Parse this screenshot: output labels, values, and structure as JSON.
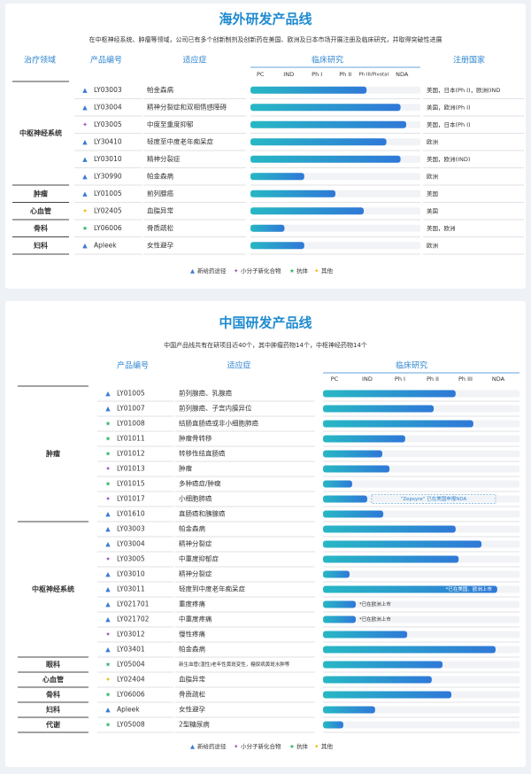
{
  "sections": [
    {
      "title": "海外研发产品线",
      "subtitle": "在中枢神经系统、肿瘤等领域，公司已有多个创新制剂及创新药在美国、欧洲及日本市场开展注册及临床研究，并取得突破性进展",
      "headers": [
        "治疗领域",
        "产品编号",
        "适应症",
        "临床研究",
        "注册国家"
      ],
      "stages": [
        "PC",
        "IND",
        "Ph I",
        "Ph II",
        "Ph III/Pivotal",
        "NDA"
      ],
      "areas": [
        {
          "name": "中枢神经系统",
          "products": [
            {
              "code": "LY03003",
              "indication": "帕金森病",
              "kind": "新给药途径",
              "progress": 4.1,
              "country": "美国，日本(Ph I)，欧洲(IND"
            },
            {
              "code": "LY03004",
              "indication": "精神分裂症和双相情感障碍",
              "kind": "新给药途径",
              "progress": 5.3,
              "country": "美国，欧洲(Ph I)"
            },
            {
              "code": "LY03005",
              "indication": "中度至重度抑郁",
              "kind": "小分子新化合物",
              "progress": 5.5,
              "country": "美国，日本(Ph I)"
            },
            {
              "code": "LY30410",
              "indication": "轻度至中度老年痴呆症",
              "kind": "新给药途径",
              "progress": 4.8,
              "country": "欧洲"
            },
            {
              "code": "LY03010",
              "indication": "精神分裂症",
              "kind": "新给药途径",
              "progress": 5.3,
              "country": "美国，欧洲(IND)"
            },
            {
              "code": "LY30990",
              "indication": "帕金森病",
              "kind": "新给药途径",
              "progress": 1.9,
              "country": "欧洲"
            }
          ]
        },
        {
          "name": "肿瘤",
          "products": [
            {
              "code": "LY01005",
              "indication": "前列腺癌",
              "kind": "新给药途径",
              "progress": 3.0,
              "country": "美国"
            }
          ]
        },
        {
          "name": "心血管",
          "products": [
            {
              "code": "LY02405",
              "indication": "血脂异常",
              "kind": "其他",
              "progress": 4.0,
              "country": "美国"
            }
          ]
        },
        {
          "name": "骨科",
          "products": [
            {
              "code": "LY06006",
              "indication": "骨质疏松",
              "kind": "抗体",
              "progress": 1.2,
              "country": "美国，欧洲"
            }
          ]
        },
        {
          "name": "妇科",
          "products": [
            {
              "code": "Apleek",
              "indication": "女性避孕",
              "kind": "新给药途径",
              "progress": 1.9,
              "country": "欧洲"
            }
          ]
        }
      ],
      "legend": [
        "新给药途径",
        "小分子新化合物",
        "抗体",
        "其他"
      ]
    },
    {
      "title": "中国研发产品线",
      "subtitle": "中国产品线共有在研项目近40个，其中肿瘤药物14个，中枢神经药物14个",
      "headers": [
        "产品编号",
        "适应症",
        "临床研究"
      ],
      "stages": [
        "PC",
        "IND",
        "Ph I",
        "Ph II",
        "Ph III",
        "NDA"
      ],
      "areas": [
        {
          "name": "肿瘤",
          "products": [
            {
              "code": "LY01005",
              "indication": "前列腺癌、乳腺癌",
              "kind": "新给药途径",
              "progress": 4.05
            },
            {
              "code": "LY01007",
              "indication": "前列腺癌、子宫内膜异位",
              "kind": "新给药途径",
              "progress": 3.38
            },
            {
              "code": "LY01008",
              "indication": "结肠直肠癌或非小细胞肺癌",
              "kind": "抗体",
              "progress": 4.59
            },
            {
              "code": "LY01011",
              "indication": "肿瘤骨转移",
              "kind": "抗体",
              "progress": 2.51
            },
            {
              "code": "LY01012",
              "indication": "转移性结直肠癌",
              "kind": "抗体",
              "progress": 1.81
            },
            {
              "code": "LY01013",
              "indication": "肿瘤",
              "kind": "小分子新化合物",
              "progress": 2.03
            },
            {
              "code": "LY01015",
              "indication": "多种癌症/肿瘤",
              "kind": "抗体",
              "progress": 0.89
            },
            {
              "code": "LY01017",
              "indication": "小细胞肺癌",
              "kind": "小分子新化合物",
              "progress": 1.35,
              "note": "“Zepsyre” 已在美国申报NDA"
            },
            {
              "code": "LY01610",
              "indication": "直肠癌和胰腺癌",
              "kind": "新给药途径",
              "progress": 1.84
            }
          ]
        },
        {
          "name": "中枢神经系统",
          "products": [
            {
              "code": "LY03003",
              "indication": "帕金森病",
              "kind": "新给药途径",
              "progress": 4.05
            },
            {
              "code": "LY03004",
              "indication": "精神分裂症",
              "kind": "新给药途径",
              "progress": 4.84
            },
            {
              "code": "LY03005",
              "indication": "中重度抑郁症",
              "kind": "小分子新化合物",
              "progress": 4.14
            },
            {
              "code": "LY03010",
              "indication": "精神分裂症",
              "kind": "新给药途径",
              "progress": 0.81
            },
            {
              "code": "LY03011",
              "indication": "轻度到中度老年痴呆症",
              "kind": "新给药途径",
              "progress": 5.32,
              "note": "*已在美国、欧洲上市"
            },
            {
              "code": "LY021701",
              "indication": "重度疼痛",
              "kind": "新给药途径",
              "progress": 1.0,
              "note": "*已在欧洲上市"
            },
            {
              "code": "LY021702",
              "indication": "中重度疼痛",
              "kind": "新给药途径",
              "progress": 1.0,
              "note": "*已在欧洲上市"
            },
            {
              "code": "LY03012",
              "indication": "慢性疼痛",
              "kind": "小分子新化合物",
              "progress": 2.57
            },
            {
              "code": "LY03401",
              "indication": "帕金森病",
              "kind": "新给药途径",
              "progress": 5.27
            }
          ]
        },
        {
          "name": "眼科",
          "products": [
            {
              "code": "LY05004",
              "indication": "新生血管(湿性)老年性黄斑变性，糖尿病黄斑水肿等",
              "kind": "抗体",
              "progress": 3.65
            }
          ]
        },
        {
          "name": "心血管",
          "products": [
            {
              "code": "LY02404",
              "indication": "血脂异常",
              "kind": "其他",
              "progress": 3.32
            }
          ]
        },
        {
          "name": "骨科",
          "products": [
            {
              "code": "LY06006",
              "indication": "骨质疏松",
              "kind": "抗体",
              "progress": 3.92
            }
          ]
        },
        {
          "name": "妇科",
          "products": [
            {
              "code": "Apleek",
              "indication": "女性避孕",
              "kind": "新给药途径",
              "progress": 1.59
            }
          ]
        },
        {
          "name": "代谢",
          "products": [
            {
              "code": "LY05008",
              "indication": "2型糖尿病",
              "kind": "抗体",
              "progress": 0.62
            }
          ]
        }
      ],
      "legend": [
        "新给药途径",
        "小分子新化合物",
        "抗体",
        "其他"
      ]
    }
  ]
}
